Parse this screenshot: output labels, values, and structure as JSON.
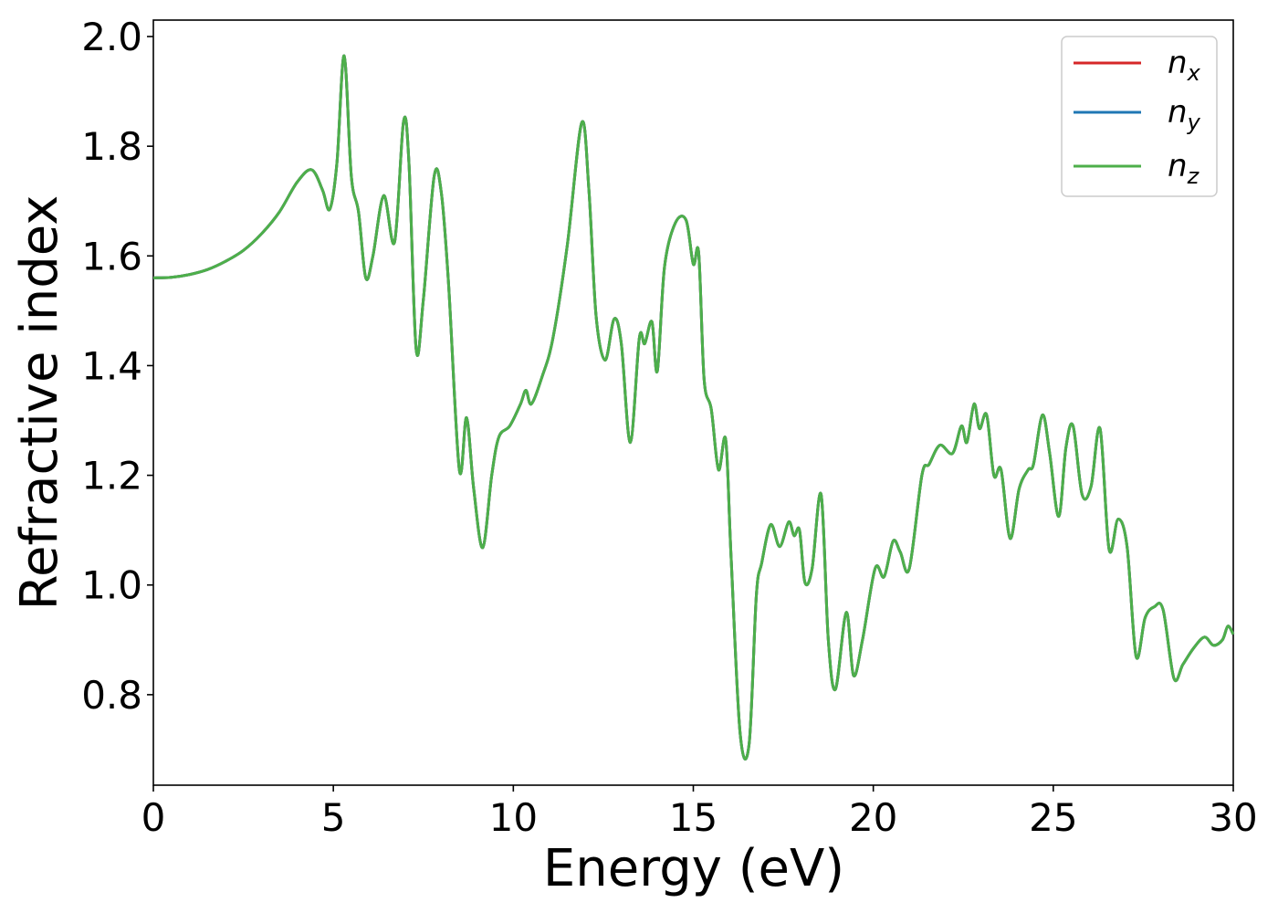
{
  "chart_data": {
    "type": "line",
    "title": "",
    "xlabel": "Energy (eV)",
    "ylabel": "Refractive index",
    "xlim": [
      0,
      30
    ],
    "ylim": [
      0.635,
      2.03
    ],
    "x_ticks": [
      0,
      5,
      10,
      15,
      20,
      25,
      30
    ],
    "y_ticks": [
      0.8,
      1.0,
      1.2,
      1.4,
      1.6,
      1.8,
      2.0
    ],
    "x_tick_labels": [
      "0",
      "5",
      "10",
      "15",
      "20",
      "25",
      "30"
    ],
    "y_tick_labels": [
      "0.8",
      "1.0",
      "1.2",
      "1.4",
      "1.6",
      "1.8",
      "2.0"
    ],
    "grid": false,
    "legend_position": "top-right",
    "series": [
      {
        "name": "n",
        "subscript": "x",
        "color": "#d62728"
      },
      {
        "name": "n",
        "subscript": "y",
        "color": "#1f77b4"
      },
      {
        "name": "n",
        "subscript": "z",
        "color": "#4daf4a"
      }
    ],
    "shared_curve_note_x": [
      0,
      0.5,
      1,
      1.5,
      2,
      2.5,
      3,
      3.5,
      4,
      4.4,
      4.7,
      4.9,
      5.1,
      5.3,
      5.5,
      5.7,
      5.9,
      6.1,
      6.4,
      6.7,
      6.95,
      7.1,
      7.3,
      7.5,
      7.8,
      8.0,
      8.2,
      8.5,
      8.7,
      8.9,
      9.15,
      9.4,
      9.6,
      9.9,
      10.2,
      10.35,
      10.5,
      10.8,
      11.1,
      11.5,
      11.9,
      12.1,
      12.3,
      12.55,
      12.8,
      13.0,
      13.25,
      13.5,
      13.65,
      13.85,
      14.0,
      14.2,
      14.5,
      14.8,
      15.0,
      15.15,
      15.3,
      15.5,
      15.7,
      15.9,
      16.05,
      16.3,
      16.55,
      16.75,
      16.9,
      17.15,
      17.4,
      17.65,
      17.8,
      17.95,
      18.1,
      18.3,
      18.55,
      18.75,
      18.95,
      19.25,
      19.45,
      19.7,
      20.05,
      20.3,
      20.55,
      20.75,
      21.0,
      21.35,
      21.55,
      21.85,
      22.2,
      22.45,
      22.6,
      22.8,
      22.95,
      23.15,
      23.35,
      23.55,
      23.8,
      24.05,
      24.3,
      24.45,
      24.7,
      24.9,
      25.15,
      25.35,
      25.55,
      25.8,
      26.05,
      26.3,
      26.55,
      26.8,
      27.05,
      27.3,
      27.55,
      27.8,
      28.05,
      28.35,
      28.6,
      28.9,
      29.2,
      29.45,
      29.7,
      29.85,
      30
    ],
    "values": [
      1.56,
      1.561,
      1.566,
      1.575,
      1.59,
      1.61,
      1.64,
      1.68,
      1.735,
      1.757,
      1.72,
      1.685,
      1.77,
      1.965,
      1.745,
      1.68,
      1.56,
      1.6,
      1.71,
      1.625,
      1.845,
      1.77,
      1.43,
      1.52,
      1.745,
      1.715,
      1.55,
      1.21,
      1.305,
      1.175,
      1.068,
      1.2,
      1.27,
      1.29,
      1.33,
      1.355,
      1.33,
      1.38,
      1.45,
      1.62,
      1.843,
      1.72,
      1.49,
      1.41,
      1.485,
      1.44,
      1.26,
      1.45,
      1.44,
      1.48,
      1.39,
      1.58,
      1.66,
      1.665,
      1.585,
      1.605,
      1.375,
      1.32,
      1.21,
      1.265,
      1.05,
      0.73,
      0.71,
      0.98,
      1.04,
      1.11,
      1.07,
      1.115,
      1.09,
      1.1,
      1.005,
      1.03,
      1.165,
      0.9,
      0.81,
      0.95,
      0.835,
      0.9,
      1.03,
      1.015,
      1.08,
      1.06,
      1.03,
      1.2,
      1.22,
      1.255,
      1.24,
      1.29,
      1.26,
      1.33,
      1.285,
      1.31,
      1.2,
      1.21,
      1.085,
      1.175,
      1.21,
      1.22,
      1.31,
      1.24,
      1.125,
      1.25,
      1.29,
      1.165,
      1.18,
      1.285,
      1.065,
      1.12,
      1.07,
      0.87,
      0.94,
      0.96,
      0.955,
      0.83,
      0.855,
      0.885,
      0.905,
      0.89,
      0.9,
      0.925,
      0.91
    ]
  }
}
